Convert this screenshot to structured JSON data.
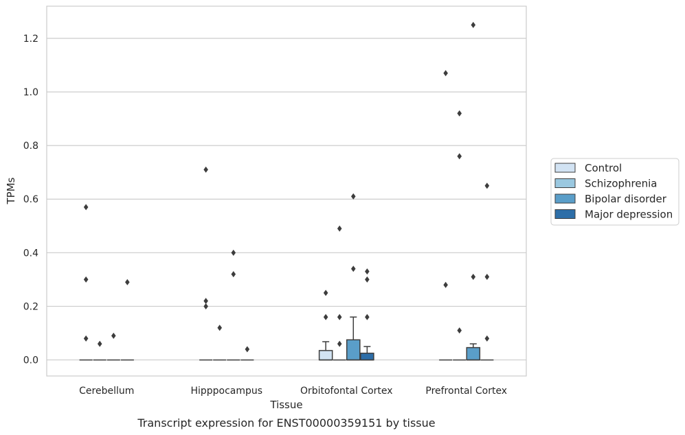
{
  "chart_data": {
    "type": "box",
    "caption": "Transcript expression for ENST00000359151 by tissue",
    "xlabel": "Tissue",
    "ylabel": "TPMs",
    "ylim": [
      -0.06,
      1.32
    ],
    "yticks": [
      0.0,
      0.2,
      0.4,
      0.6,
      0.8,
      1.0,
      1.2
    ],
    "ytick_labels": [
      "0.0",
      "0.2",
      "0.4",
      "0.6",
      "0.8",
      "1.0",
      "1.2"
    ],
    "grid": true,
    "legend_position": "right",
    "categories": [
      "Cerebellum",
      "Hipppocampus",
      "Orbitofontal Cortex",
      "Prefrontal Cortex"
    ],
    "series": [
      {
        "name": "Control",
        "color": "#d2e3f3",
        "boxes": [
          {
            "q1": 0,
            "median": 0,
            "q3": 0,
            "whisker_low": 0,
            "whisker_high": 0,
            "outliers": [
              0.57,
              0.3,
              0.08
            ]
          },
          {
            "q1": 0,
            "median": 0,
            "q3": 0,
            "whisker_low": 0,
            "whisker_high": 0,
            "outliers": [
              0.71,
              0.22,
              0.2
            ]
          },
          {
            "q1": 0,
            "median": 0,
            "q3": 0.035,
            "whisker_low": 0,
            "whisker_high": 0.068,
            "outliers": [
              0.25,
              0.16
            ]
          },
          {
            "q1": 0,
            "median": 0,
            "q3": 0,
            "whisker_low": 0,
            "whisker_high": 0,
            "outliers": [
              1.07,
              0.28
            ]
          }
        ]
      },
      {
        "name": "Schizophrenia",
        "color": "#9ac8e0",
        "boxes": [
          {
            "q1": 0,
            "median": 0,
            "q3": 0,
            "whisker_low": 0,
            "whisker_high": 0,
            "outliers": [
              0.06
            ]
          },
          {
            "q1": 0,
            "median": 0,
            "q3": 0,
            "whisker_low": 0,
            "whisker_high": 0,
            "outliers": [
              0.12
            ]
          },
          {
            "q1": 0,
            "median": 0,
            "q3": 0,
            "whisker_low": 0,
            "whisker_high": 0,
            "outliers": [
              0.49,
              0.16,
              0.06
            ]
          },
          {
            "q1": 0,
            "median": 0,
            "q3": 0,
            "whisker_low": 0,
            "whisker_high": 0,
            "outliers": [
              0.92,
              0.76,
              0.11
            ]
          }
        ]
      },
      {
        "name": "Bipolar disorder",
        "color": "#5a9ec9",
        "boxes": [
          {
            "q1": 0,
            "median": 0,
            "q3": 0,
            "whisker_low": 0,
            "whisker_high": 0,
            "outliers": [
              0.09
            ]
          },
          {
            "q1": 0,
            "median": 0,
            "q3": 0,
            "whisker_low": 0,
            "whisker_high": 0,
            "outliers": [
              0.4,
              0.32
            ]
          },
          {
            "q1": 0,
            "median": 0,
            "q3": 0.075,
            "whisker_low": 0,
            "whisker_high": 0.16,
            "outliers": [
              0.61,
              0.34
            ]
          },
          {
            "q1": 0,
            "median": 0,
            "q3": 0.046,
            "whisker_low": 0,
            "whisker_high": 0.06,
            "outliers": [
              1.25,
              0.31
            ]
          }
        ]
      },
      {
        "name": "Major depression",
        "color": "#2d6ea8",
        "boxes": [
          {
            "q1": 0,
            "median": 0,
            "q3": 0,
            "whisker_low": 0,
            "whisker_high": 0,
            "outliers": [
              0.29
            ]
          },
          {
            "q1": 0,
            "median": 0,
            "q3": 0,
            "whisker_low": 0,
            "whisker_high": 0,
            "outliers": [
              0.04
            ]
          },
          {
            "q1": 0,
            "median": 0,
            "q3": 0.025,
            "whisker_low": 0,
            "whisker_high": 0.05,
            "outliers": [
              0.33,
              0.3,
              0.16
            ]
          },
          {
            "q1": 0,
            "median": 0,
            "q3": 0,
            "whisker_low": 0,
            "whisker_high": 0,
            "outliers": [
              0.65,
              0.31,
              0.08
            ]
          }
        ]
      }
    ]
  }
}
